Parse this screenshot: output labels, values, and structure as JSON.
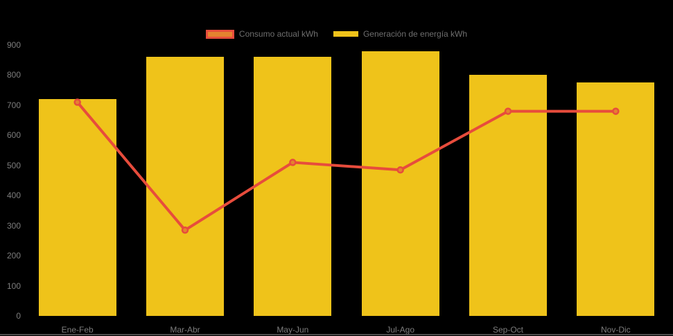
{
  "colors": {
    "background": "#000000",
    "bar": "#EFC31A",
    "line": "#E74C3C",
    "marker_fill": "#E5822F",
    "axis_text": "#7d7d7d",
    "legend_text": "#6e6e6e",
    "bottom_rule": "#4d4d4d"
  },
  "legend": {
    "items": [
      {
        "label": "Consumo actual kWh",
        "swatch_fill": "#E5822F",
        "swatch_border": "#E74C3C",
        "type": "line"
      },
      {
        "label": "Generación de energía kWh",
        "swatch_fill": "#EFC31A",
        "swatch_border": "#EFC31A",
        "type": "bar"
      }
    ]
  },
  "chart_data": {
    "type": "bar",
    "subtype": "bar-with-line-overlay",
    "title": "",
    "xlabel": "",
    "ylabel": "",
    "categories": [
      "Ene-Feb",
      "Mar-Abr",
      "May-Jun",
      "Jul-Ago",
      "Sep-Oct",
      "Nov-Dic"
    ],
    "series": [
      {
        "name": "Generación de energía kWh",
        "type": "bar",
        "color": "#EFC31A",
        "values": [
          720,
          860,
          860,
          880,
          800,
          775
        ]
      },
      {
        "name": "Consumo actual kWh",
        "type": "line",
        "color": "#E74C3C",
        "marker_fill": "#E5822F",
        "values": [
          710,
          285,
          510,
          485,
          680,
          680
        ]
      }
    ],
    "ylim": [
      0,
      900
    ],
    "y_ticks": [
      0,
      100,
      200,
      300,
      400,
      500,
      600,
      700,
      800,
      900
    ],
    "grid": false,
    "legend_position": "top"
  }
}
